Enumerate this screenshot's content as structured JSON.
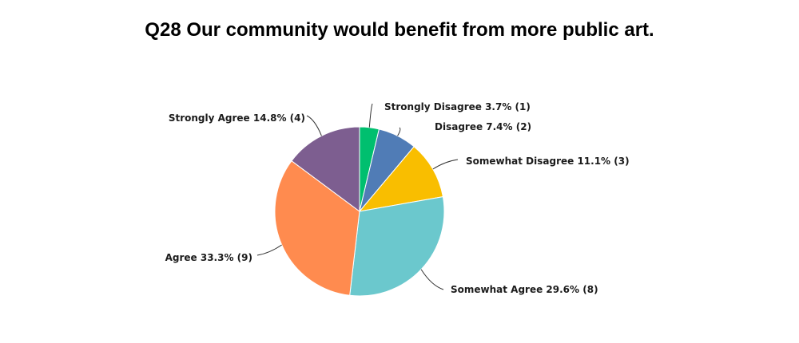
{
  "chart_data": {
    "type": "pie",
    "title": "Q28 Our community would benefit from more public art.",
    "slices": [
      {
        "label": "Strongly Disagree",
        "percent": 3.7,
        "count": 1,
        "color": "#00bf6f",
        "text": "Strongly Disagree 3.7% (1)"
      },
      {
        "label": "Disagree",
        "percent": 7.4,
        "count": 2,
        "color": "#507cb6",
        "text": "Disagree 7.4% (2)"
      },
      {
        "label": "Somewhat Disagree",
        "percent": 11.1,
        "count": 3,
        "color": "#f9be00",
        "text": "Somewhat Disagree 11.1% (3)"
      },
      {
        "label": "Somewhat Agree",
        "percent": 29.6,
        "count": 8,
        "color": "#6bc8cd",
        "text": "Somewhat Agree 29.6% (8)"
      },
      {
        "label": "Agree",
        "percent": 33.3,
        "count": 9,
        "color": "#ff8b4f",
        "text": "Agree 33.3% (9)"
      },
      {
        "label": "Strongly Agree",
        "percent": 14.8,
        "count": 4,
        "color": "#7d5e90",
        "text": "Strongly Agree 14.8% (4)"
      }
    ],
    "legend": "none"
  }
}
